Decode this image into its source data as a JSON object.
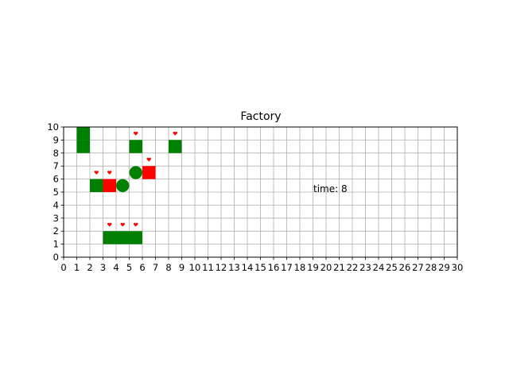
{
  "title": "Factory",
  "time_label": "time: 8",
  "grid": {
    "cols": 30,
    "rows": 10
  },
  "x_ticks": [
    "0",
    "1",
    "2",
    "3",
    "4",
    "5",
    "6",
    "7",
    "8",
    "9",
    "10",
    "11",
    "12",
    "13",
    "14",
    "15",
    "16",
    "17",
    "18",
    "19",
    "20",
    "21",
    "22",
    "23",
    "24",
    "25",
    "26",
    "27",
    "28",
    "29",
    "30"
  ],
  "y_ticks": [
    "0",
    "1",
    "2",
    "3",
    "4",
    "5",
    "6",
    "7",
    "8",
    "9",
    "10"
  ],
  "colors": {
    "machine_red": "#ff0000",
    "agent_green": "#008000",
    "grid": "#b0b0b0",
    "marker": "#ff0000"
  },
  "cells": [
    {
      "x": 1,
      "y": 9,
      "fill": "green-square"
    },
    {
      "x": 1,
      "y": 8,
      "fill": "green-square"
    },
    {
      "x": 5,
      "y": 8,
      "fill": "green-square"
    },
    {
      "x": 8,
      "y": 8,
      "fill": "green-square"
    },
    {
      "x": 6,
      "y": 6,
      "fill": "red-square"
    },
    {
      "x": 2,
      "y": 5,
      "fill": "green-square"
    },
    {
      "x": 3,
      "y": 5,
      "fill": "red-square"
    },
    {
      "x": 3,
      "y": 1,
      "fill": "green-square"
    },
    {
      "x": 4,
      "y": 1,
      "fill": "green-square"
    },
    {
      "x": 5,
      "y": 1,
      "fill": "green-square"
    }
  ],
  "circles": [
    {
      "x": 5,
      "y": 6
    },
    {
      "x": 4,
      "y": 5
    }
  ],
  "markers": [
    {
      "x": 5,
      "y": 9
    },
    {
      "x": 8,
      "y": 9
    },
    {
      "x": 6,
      "y": 7
    },
    {
      "x": 2,
      "y": 6
    },
    {
      "x": 3,
      "y": 6
    },
    {
      "x": 3,
      "y": 2
    },
    {
      "x": 4,
      "y": 2
    },
    {
      "x": 5,
      "y": 2
    }
  ]
}
